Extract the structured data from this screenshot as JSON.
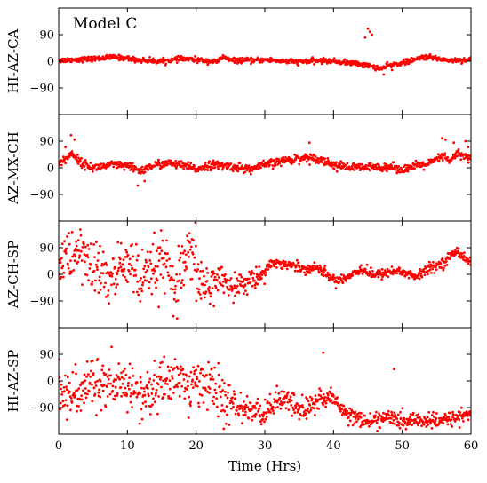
{
  "chart_data": {
    "type": "scatter",
    "title": "Model C",
    "xlabel": "Time (Hrs)",
    "xlim": [
      0,
      60
    ],
    "xticks": [
      "0",
      "10",
      "20",
      "30",
      "40",
      "50",
      "60"
    ],
    "xtick_values": [
      0,
      10,
      20,
      30,
      40,
      50,
      60
    ],
    "ylim": [
      -180,
      180
    ],
    "yticks": [
      "90",
      "0",
      "−90"
    ],
    "ytick_values": [
      90,
      0,
      -90
    ],
    "marker_color": "#ff0000",
    "grid": false,
    "panels": [
      {
        "ylabel": "HI-AZ-CA",
        "key_points": [
          [
            0,
            3
          ],
          [
            5,
            8
          ],
          [
            8,
            14
          ],
          [
            10,
            10
          ],
          [
            12,
            3
          ],
          [
            15,
            0
          ],
          [
            18,
            8
          ],
          [
            20,
            5
          ],
          [
            23,
            -2
          ],
          [
            24,
            15
          ],
          [
            25,
            3
          ],
          [
            28,
            2
          ],
          [
            30,
            5
          ],
          [
            33,
            0
          ],
          [
            35,
            -2
          ],
          [
            38,
            2
          ],
          [
            40,
            0
          ],
          [
            42,
            -5
          ],
          [
            44,
            -10
          ],
          [
            45,
            -15
          ],
          [
            46,
            -20
          ],
          [
            47,
            -25
          ],
          [
            48,
            -15
          ],
          [
            50,
            -5
          ],
          [
            52,
            5
          ],
          [
            53,
            15
          ],
          [
            55,
            10
          ],
          [
            57,
            3
          ],
          [
            60,
            5
          ]
        ],
        "jitter": 6,
        "outliers": [
          [
            45.0,
            110
          ],
          [
            45.3,
            100
          ],
          [
            45.6,
            90
          ],
          [
            44.6,
            80
          ],
          [
            43.5,
            -2
          ],
          [
            47.3,
            -45
          ],
          [
            48.5,
            -30
          ]
        ]
      },
      {
        "ylabel": "AZ-MX-CH",
        "key_points": [
          [
            0,
            15
          ],
          [
            1,
            30
          ],
          [
            2,
            50
          ],
          [
            3,
            20
          ],
          [
            5,
            0
          ],
          [
            8,
            10
          ],
          [
            10,
            5
          ],
          [
            12,
            -10
          ],
          [
            14,
            10
          ],
          [
            16,
            15
          ],
          [
            18,
            8
          ],
          [
            20,
            -5
          ],
          [
            22,
            10
          ],
          [
            25,
            5
          ],
          [
            28,
            -5
          ],
          [
            30,
            10
          ],
          [
            33,
            25
          ],
          [
            36,
            35
          ],
          [
            38,
            30
          ],
          [
            40,
            10
          ],
          [
            42,
            2
          ],
          [
            45,
            0
          ],
          [
            48,
            5
          ],
          [
            50,
            -5
          ],
          [
            52,
            5
          ],
          [
            54,
            15
          ],
          [
            56,
            40
          ],
          [
            57,
            20
          ],
          [
            58,
            50
          ],
          [
            60,
            30
          ]
        ],
        "jitter": 10,
        "outliers": [
          [
            1.8,
            110
          ],
          [
            2.3,
            95
          ],
          [
            1.0,
            70
          ],
          [
            11.5,
            -60
          ],
          [
            12.5,
            -45
          ],
          [
            36.5,
            85
          ],
          [
            55.8,
            100
          ],
          [
            56.3,
            95
          ],
          [
            57.5,
            85
          ],
          [
            59.2,
            90
          ],
          [
            59.6,
            70
          ]
        ]
      },
      {
        "ylabel": "AZ-CH-SP",
        "key_points": [
          [
            0,
            40
          ],
          [
            3,
            80
          ],
          [
            5,
            20
          ],
          [
            8,
            -20
          ],
          [
            10,
            60
          ],
          [
            12,
            -40
          ],
          [
            15,
            50
          ],
          [
            17,
            -60
          ],
          [
            19,
            70
          ],
          [
            21,
            -40
          ],
          [
            23,
            -20
          ],
          [
            25,
            -40
          ],
          [
            27,
            -30
          ],
          [
            29,
            -10
          ],
          [
            31,
            40
          ],
          [
            34,
            30
          ],
          [
            36,
            20
          ],
          [
            38,
            20
          ],
          [
            40,
            -20
          ],
          [
            42,
            -10
          ],
          [
            44,
            20
          ],
          [
            46,
            -5
          ],
          [
            48,
            10
          ],
          [
            50,
            10
          ],
          [
            52,
            -10
          ],
          [
            54,
            20
          ],
          [
            56,
            40
          ],
          [
            58,
            80
          ],
          [
            60,
            40
          ]
        ],
        "jitter": 25,
        "wild": [
          [
            0,
            24,
            70
          ],
          [
            24,
            30,
            25
          ],
          [
            30,
            60,
            12
          ]
        ]
      },
      {
        "ylabel": "HI-AZ-SP",
        "key_points": [
          [
            0,
            -30
          ],
          [
            3,
            -60
          ],
          [
            5,
            10
          ],
          [
            8,
            -40
          ],
          [
            10,
            0
          ],
          [
            12,
            -60
          ],
          [
            15,
            -10
          ],
          [
            17,
            20
          ],
          [
            19,
            -30
          ],
          [
            21,
            10
          ],
          [
            23,
            -40
          ],
          [
            25,
            -80
          ],
          [
            28,
            -100
          ],
          [
            30,
            -110
          ],
          [
            32,
            -60
          ],
          [
            34,
            -80
          ],
          [
            36,
            -100
          ],
          [
            38,
            -60
          ],
          [
            40,
            -60
          ],
          [
            42,
            -110
          ],
          [
            45,
            -140
          ],
          [
            48,
            -120
          ],
          [
            50,
            -140
          ],
          [
            52,
            -130
          ],
          [
            55,
            -140
          ],
          [
            58,
            -120
          ],
          [
            60,
            -110
          ]
        ],
        "jitter": 18,
        "wild": [
          [
            0,
            25,
            60
          ],
          [
            25,
            40,
            30
          ],
          [
            40,
            60,
            18
          ]
        ],
        "outliers": [
          [
            38.5,
            95
          ],
          [
            48.8,
            40
          ]
        ]
      }
    ]
  }
}
